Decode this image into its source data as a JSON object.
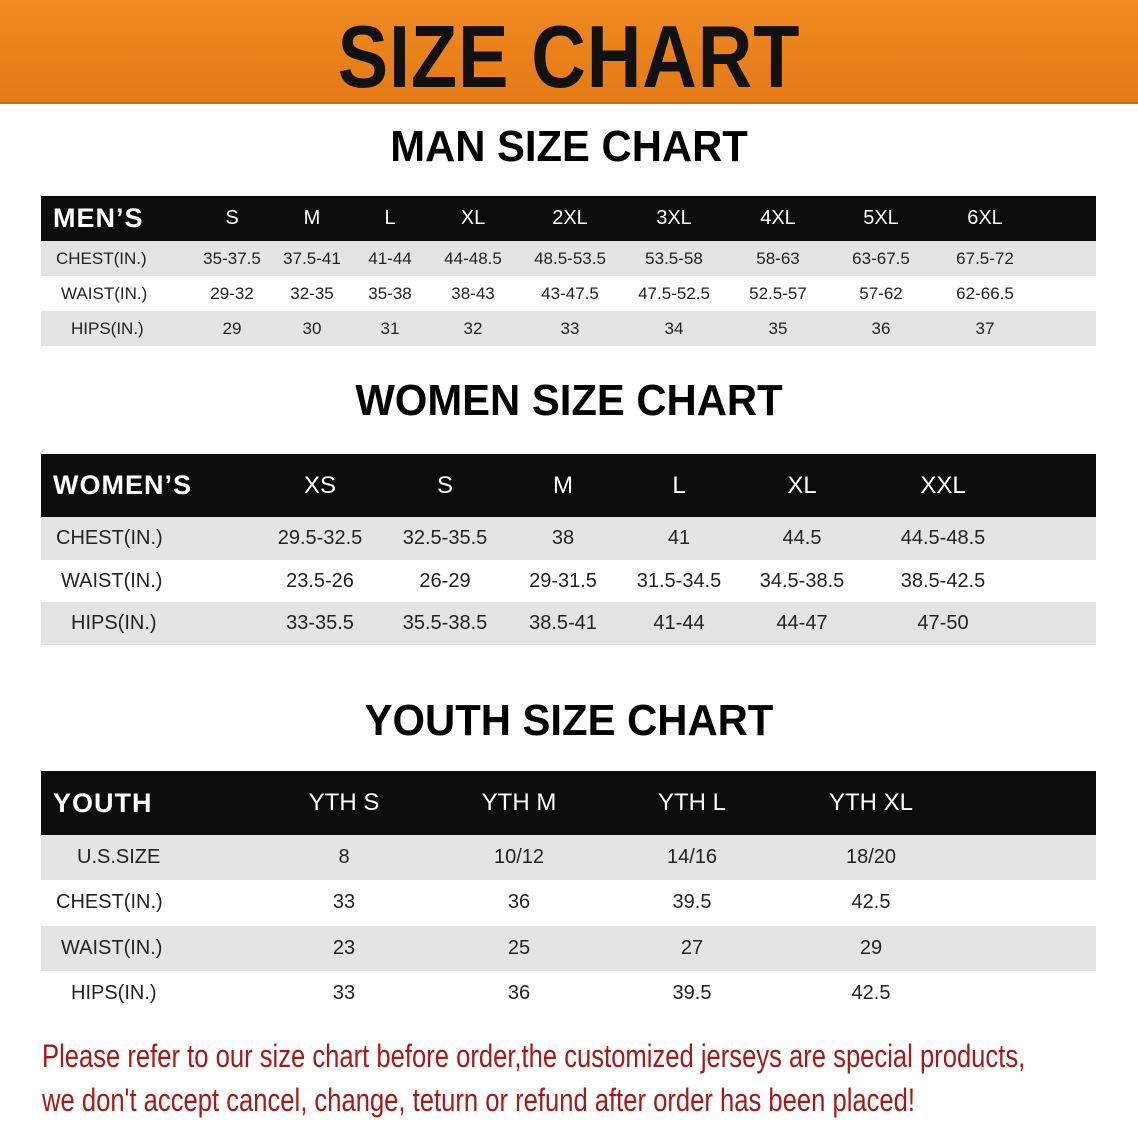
{
  "title": "SIZE CHART",
  "colors": {
    "banner": "#e8821c",
    "header_row": "#0c0c0c",
    "stripe": "#e4e4e4",
    "notice": "#a81818"
  },
  "men": {
    "title": "MAN SIZE CHART",
    "corner": "MEN’S",
    "sizes": [
      "S",
      "M",
      "L",
      "XL",
      "2XL",
      "3XL",
      "4XL",
      "5XL",
      "6XL"
    ],
    "rows": [
      {
        "label": "CHEST(IN.)",
        "values": [
          "35-37.5",
          "37.5-41",
          "41-44",
          "44-48.5",
          "48.5-53.5",
          "53.5-58",
          "58-63",
          "63-67.5",
          "67.5-72"
        ]
      },
      {
        "label": "WAIST(IN.)",
        "values": [
          "29-32",
          "32-35",
          "35-38",
          "38-43",
          "43-47.5",
          "47.5-52.5",
          "52.5-57",
          "57-62",
          "62-66.5"
        ]
      },
      {
        "label": "HIPS(IN.)",
        "values": [
          "29",
          "30",
          "31",
          "32",
          "33",
          "34",
          "35",
          "36",
          "37"
        ]
      }
    ]
  },
  "women": {
    "title": "WOMEN SIZE CHART",
    "corner": "WOMEN’S",
    "sizes": [
      "XS",
      "S",
      "M",
      "L",
      "XL",
      "XXL"
    ],
    "rows": [
      {
        "label": "CHEST(IN.)",
        "values": [
          "29.5-32.5",
          "32.5-35.5",
          "38",
          "41",
          "44.5",
          "44.5-48.5"
        ]
      },
      {
        "label": "WAIST(IN.)",
        "values": [
          "23.5-26",
          "26-29",
          "29-31.5",
          "31.5-34.5",
          "34.5-38.5",
          "38.5-42.5"
        ]
      },
      {
        "label": "HIPS(IN.)",
        "values": [
          "33-35.5",
          "35.5-38.5",
          "38.5-41",
          "41-44",
          "44-47",
          "47-50"
        ]
      }
    ]
  },
  "youth": {
    "title": "YOUTH SIZE CHART",
    "corner": "YOUTH",
    "sizes": [
      "YTH S",
      "YTH M",
      "YTH L",
      "YTH XL"
    ],
    "rows": [
      {
        "label": "U.S.SIZE",
        "values": [
          "8",
          "10/12",
          "14/16",
          "18/20"
        ]
      },
      {
        "label": "CHEST(IN.)",
        "values": [
          "33",
          "36",
          "39.5",
          "42.5"
        ]
      },
      {
        "label": "WAIST(IN.)",
        "values": [
          "23",
          "25",
          "27",
          "29"
        ]
      },
      {
        "label": "HIPS(IN.)",
        "values": [
          "33",
          "36",
          "39.5",
          "42.5"
        ]
      }
    ]
  },
  "notice": {
    "line1": "Please refer to our size chart before order,the customized jerseys are special products,",
    "line2": "we don't accept cancel, change, teturn or refund after order has been placed!"
  }
}
